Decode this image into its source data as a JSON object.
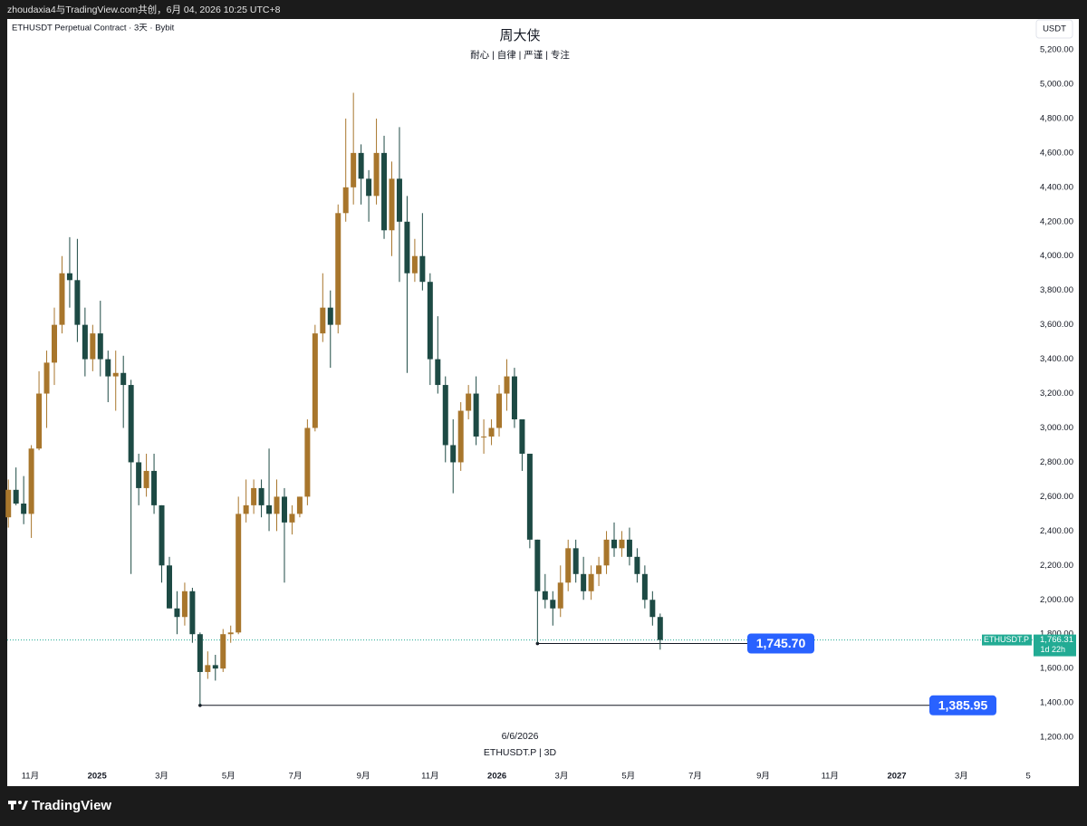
{
  "header_bar": "zhoudaxia4与TradingView.com共创，6月 04, 2026 10:25 UTC+8",
  "footer": "TradingView",
  "chart_data": {
    "type": "candlestick",
    "instrument": "ETHUSDT Perpetual Contract · 3天 · Bybit",
    "title": "周大侠",
    "subtitle": "耐心 | 自律 | 严谨 | 专注",
    "currency": "USDT",
    "watermark": [
      "6/6/2026",
      "ETHUSDT.P | 3D"
    ],
    "up_color": "#a8762c",
    "down_color": "#1d4a44",
    "x": [
      "2024-10-12",
      "2024-10-19",
      "2024-10-26",
      "2024-11-02",
      "2024-11-09",
      "2024-11-16",
      "2024-11-23",
      "2024-11-30",
      "2024-12-07",
      "2024-12-14",
      "2024-12-21",
      "2024-12-28",
      "2025-01-04",
      "2025-01-11",
      "2025-01-18",
      "2025-01-25",
      "2025-02-01",
      "2025-02-08",
      "2025-02-15",
      "2025-02-22",
      "2025-03-01",
      "2025-03-08",
      "2025-03-15",
      "2025-03-22",
      "2025-03-29",
      "2025-04-05",
      "2025-04-12",
      "2025-04-19",
      "2025-04-26",
      "2025-05-03",
      "2025-05-10",
      "2025-05-17",
      "2025-05-24",
      "2025-05-31",
      "2025-06-07",
      "2025-06-14",
      "2025-06-21",
      "2025-06-28",
      "2025-07-05",
      "2025-07-12",
      "2025-07-19",
      "2025-07-26",
      "2025-08-02",
      "2025-08-09",
      "2025-08-16",
      "2025-08-23",
      "2025-08-30",
      "2025-09-06",
      "2025-09-13",
      "2025-09-20",
      "2025-09-27",
      "2025-10-04",
      "2025-10-11",
      "2025-10-18",
      "2025-10-25",
      "2025-11-01",
      "2025-11-08",
      "2025-11-15",
      "2025-11-22",
      "2025-11-29",
      "2025-12-06",
      "2025-12-13",
      "2025-12-20",
      "2025-12-27",
      "2026-01-03",
      "2026-01-10",
      "2026-01-17",
      "2026-01-24",
      "2026-01-31",
      "2026-02-07",
      "2026-02-14",
      "2026-02-21",
      "2026-02-28",
      "2026-03-07",
      "2026-03-14",
      "2026-03-21",
      "2026-03-28",
      "2026-04-04",
      "2026-04-11",
      "2026-04-18",
      "2026-04-25",
      "2026-05-02",
      "2026-05-09",
      "2026-05-16",
      "2026-05-23",
      "2026-05-30"
    ],
    "open": [
      2480,
      2640,
      2560,
      2500,
      2880,
      3200,
      3380,
      3600,
      3900,
      3860,
      3600,
      3400,
      3550,
      3400,
      3300,
      3320,
      3250,
      2800,
      2650,
      2750,
      2550,
      2200,
      1950,
      1900,
      2050,
      1800,
      1580,
      1620,
      1600,
      1800,
      1810,
      2500,
      2550,
      2650,
      2550,
      2500,
      2600,
      2450,
      2500,
      2600,
      3000,
      3550,
      3700,
      3600,
      4250,
      4400,
      4600,
      4450,
      4350,
      4600,
      4150,
      4450,
      4200,
      3900,
      4000,
      3850,
      3400,
      3250,
      2900,
      2800,
      3100,
      3200,
      2950,
      2950,
      3000,
      3200,
      3300,
      3050,
      2850,
      2350,
      2050,
      2000,
      1950,
      2100,
      2300,
      2150,
      2050,
      2150,
      2200,
      2350,
      2300,
      2350,
      2250,
      2150,
      2000,
      1900
    ],
    "high": [
      2700,
      2770,
      2720,
      2900,
      3330,
      3450,
      3700,
      4000,
      4110,
      4100,
      3700,
      3600,
      3740,
      3450,
      3450,
      3420,
      3280,
      2850,
      2850,
      2850,
      2550,
      2250,
      2050,
      2100,
      2070,
      1810,
      1700,
      1680,
      1830,
      1850,
      2600,
      2700,
      2700,
      2700,
      2880,
      2700,
      2650,
      2550,
      2600,
      3050,
      3600,
      3900,
      3800,
      4300,
      4800,
      4950,
      4650,
      4500,
      4800,
      4700,
      4550,
      4750,
      4350,
      4100,
      4250,
      3900,
      3650,
      3300,
      3050,
      3150,
      3250,
      3300,
      3050,
      3050,
      3250,
      3400,
      3350,
      3050,
      2850,
      2350,
      2150,
      2050,
      2200,
      2350,
      2350,
      2250,
      2200,
      2250,
      2400,
      2450,
      2400,
      2420,
      2300,
      2200,
      2050,
      1920
    ],
    "low": [
      2420,
      2550,
      2440,
      2360,
      2870,
      3000,
      3250,
      3550,
      3700,
      3500,
      3300,
      3330,
      3300,
      3150,
      3100,
      3000,
      2150,
      2550,
      2600,
      2500,
      2100,
      1950,
      1800,
      1850,
      1750,
      1385.95,
      1540,
      1530,
      1580,
      1750,
      1800,
      2450,
      2500,
      2480,
      2400,
      2400,
      2100,
      2380,
      2480,
      2550,
      2980,
      3500,
      3350,
      3550,
      4200,
      4300,
      4300,
      4200,
      4300,
      4100,
      4000,
      3850,
      3320,
      3850,
      3800,
      3250,
      3200,
      2800,
      2620,
      2750,
      3050,
      2900,
      2850,
      2900,
      2950,
      3100,
      3000,
      2750,
      2300,
      1745.7,
      1950,
      1850,
      1900,
      2050,
      2100,
      2000,
      2000,
      2080,
      2150,
      2250,
      2250,
      2200,
      2100,
      1950,
      1850,
      1710
    ],
    "close": [
      2640,
      2560,
      2500,
      2880,
      3200,
      3380,
      3600,
      3900,
      3860,
      3600,
      3400,
      3550,
      3400,
      3300,
      3320,
      3250,
      2800,
      2650,
      2750,
      2550,
      2200,
      1950,
      1900,
      2050,
      1800,
      1580,
      1620,
      1600,
      1800,
      1810,
      2500,
      2550,
      2650,
      2550,
      2500,
      2600,
      2450,
      2500,
      2600,
      3000,
      3550,
      3700,
      3600,
      4250,
      4400,
      4600,
      4450,
      4350,
      4600,
      4150,
      4450,
      4200,
      3900,
      4000,
      3850,
      3400,
      3250,
      2900,
      2800,
      3100,
      3200,
      2950,
      2950,
      3000,
      3200,
      3300,
      3050,
      2850,
      2350,
      2050,
      2000,
      1950,
      2100,
      2300,
      2150,
      2050,
      2150,
      2200,
      2350,
      2300,
      2350,
      2250,
      2150,
      2000,
      1900,
      1766.31
    ],
    "xlim": [
      "2024-10-11",
      "2027-05-05"
    ],
    "xticks": [
      {
        "value": "2024-11-01",
        "label": "11月"
      },
      {
        "value": "2025-01-01",
        "label": "2025"
      },
      {
        "value": "2025-03-01",
        "label": "3月"
      },
      {
        "value": "2025-05-01",
        "label": "5月"
      },
      {
        "value": "2025-07-01",
        "label": "7月"
      },
      {
        "value": "2025-09-01",
        "label": "9月"
      },
      {
        "value": "2025-11-01",
        "label": "11月"
      },
      {
        "value": "2026-01-01",
        "label": "2026"
      },
      {
        "value": "2026-03-01",
        "label": "3月"
      },
      {
        "value": "2026-05-01",
        "label": "5月"
      },
      {
        "value": "2026-07-01",
        "label": "7月"
      },
      {
        "value": "2026-09-01",
        "label": "9月"
      },
      {
        "value": "2026-11-01",
        "label": "11月"
      },
      {
        "value": "2027-01-01",
        "label": "2027"
      },
      {
        "value": "2027-03-01",
        "label": "3月"
      },
      {
        "value": "2027-05-01",
        "label": "5"
      }
    ],
    "ylim": [
      1037,
      5374
    ],
    "yticks": [
      {
        "value": 1200,
        "label": "1,200.00"
      },
      {
        "value": 1400,
        "label": "1,400.00"
      },
      {
        "value": 1600,
        "label": "1,600.00"
      },
      {
        "value": 1800,
        "label": "1,800.00"
      },
      {
        "value": 2000,
        "label": "2,000.00"
      },
      {
        "value": 2200,
        "label": "2,200.00"
      },
      {
        "value": 2400,
        "label": "2,400.00"
      },
      {
        "value": 2600,
        "label": "2,600.00"
      },
      {
        "value": 2800,
        "label": "2,800.00"
      },
      {
        "value": 3000,
        "label": "3,000.00"
      },
      {
        "value": 3200,
        "label": "3,200.00"
      },
      {
        "value": 3400,
        "label": "3,400.00"
      },
      {
        "value": 3600,
        "label": "3,600.00"
      },
      {
        "value": 3800,
        "label": "3,800.00"
      },
      {
        "value": 4000,
        "label": "4,000.00"
      },
      {
        "value": 4200,
        "label": "4,200.00"
      },
      {
        "value": 4400,
        "label": "4,400.00"
      },
      {
        "value": 4600,
        "label": "4,600.00"
      },
      {
        "value": 4800,
        "label": "4,800.00"
      },
      {
        "value": 5000,
        "label": "5,000.00"
      },
      {
        "value": 5200,
        "label": "5,200.00"
      }
    ],
    "price_lines": [
      {
        "value": 1745.7,
        "label": "1,745.70",
        "start": "2026-02-07"
      },
      {
        "value": 1385.95,
        "label": "1,385.95",
        "start": "2025-04-05"
      }
    ],
    "last_price": {
      "value": 1766.31,
      "label": "1,766.31",
      "symbol": "ETHUSDT.P",
      "countdown": "1d 22h",
      "color": "#22ab94"
    }
  }
}
